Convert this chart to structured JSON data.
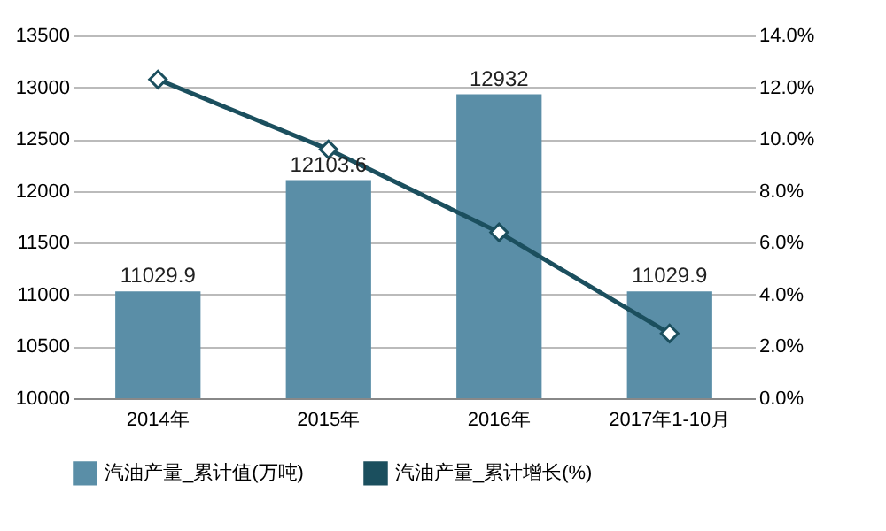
{
  "chart_data": {
    "type": "bar",
    "categories": [
      "2014年",
      "2015年",
      "2016年",
      "2017年1-10月"
    ],
    "series": [
      {
        "name": "汽油产量_累计值(万吨)",
        "color": "#5a8ea7",
        "values": [
          11029.9,
          12103.6,
          12932,
          11029.9
        ],
        "value_labels": [
          "11029.9",
          "12103.6",
          "12932",
          "11029.9"
        ]
      },
      {
        "name": "汽油产量_累计增长(%)",
        "type": "line",
        "axis": "y2",
        "color": "#1b4f5e",
        "values": [
          12.3,
          9.6,
          6.4,
          2.5
        ]
      }
    ],
    "ylim": [
      10000,
      13500
    ],
    "yticks": [
      10000,
      10500,
      11000,
      11500,
      12000,
      12500,
      13000,
      13500
    ],
    "y2lim": [
      0,
      14
    ],
    "y2ticks": [
      {
        "value": 0,
        "label": "0.0%"
      },
      {
        "value": 2,
        "label": "2.0%"
      },
      {
        "value": 4,
        "label": "4.0%"
      },
      {
        "value": 6,
        "label": "6.0%"
      },
      {
        "value": 8,
        "label": "8.0%"
      },
      {
        "value": 10,
        "label": "10.0%"
      },
      {
        "value": 12,
        "label": "12.0%"
      },
      {
        "value": 14,
        "label": "14.0%"
      }
    ],
    "grid": "y",
    "legend": "bottom",
    "marker": "diamond"
  }
}
